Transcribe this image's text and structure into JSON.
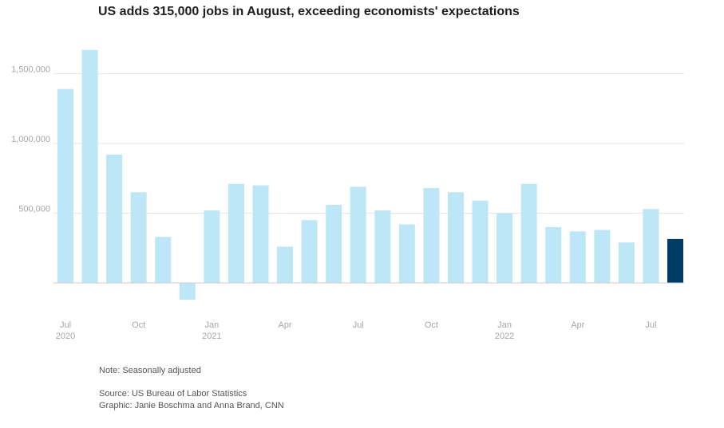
{
  "title": "US adds 315,000 jobs in August, exceeding economists' expectations",
  "note": "Note: Seasonally adjusted",
  "source": "Source: US Bureau of Labor Statistics",
  "credit": "Graphic: Janie Boschma and Anna Brand, CNN",
  "colors": {
    "bar": "#bde6f6",
    "highlight": "#003d66",
    "grid": "#e6e6e6",
    "axis": "#cccccc",
    "tick_text": "#a6a6a6"
  },
  "chart_data": {
    "type": "bar",
    "title": "US adds 315,000 jobs in August, exceeding economists' expectations",
    "xlabel": "",
    "ylabel": "",
    "ylim": [
      -130000,
      1750000
    ],
    "yticks": [
      {
        "value": 500000,
        "label": "500,000"
      },
      {
        "value": 1000000,
        "label": "1,000,000"
      },
      {
        "value": 1500000,
        "label": "1,500,000"
      }
    ],
    "categories": [
      "Jul 2020",
      "Aug 2020",
      "Sep 2020",
      "Oct 2020",
      "Nov 2020",
      "Dec 2020",
      "Jan 2021",
      "Feb 2021",
      "Mar 2021",
      "Apr 2021",
      "May 2021",
      "Jun 2021",
      "Jul 2021",
      "Aug 2021",
      "Sep 2021",
      "Oct 2021",
      "Nov 2021",
      "Dec 2021",
      "Jan 2022",
      "Feb 2022",
      "Mar 2022",
      "Apr 2022",
      "May 2022",
      "Jun 2022",
      "Jul 2022",
      "Aug 2022"
    ],
    "values": [
      1390000,
      1670000,
      920000,
      650000,
      330000,
      -120000,
      520000,
      710000,
      700000,
      260000,
      450000,
      560000,
      690000,
      520000,
      420000,
      680000,
      650000,
      590000,
      500000,
      710000,
      400000,
      370000,
      380000,
      290000,
      530000,
      315000
    ],
    "highlight_index": 25,
    "xtick_labels": [
      {
        "index": 0,
        "line1": "Jul",
        "line2": "2020"
      },
      {
        "index": 3,
        "line1": "Oct",
        "line2": ""
      },
      {
        "index": 6,
        "line1": "Jan",
        "line2": "2021"
      },
      {
        "index": 9,
        "line1": "Apr",
        "line2": ""
      },
      {
        "index": 12,
        "line1": "Jul",
        "line2": ""
      },
      {
        "index": 15,
        "line1": "Oct",
        "line2": ""
      },
      {
        "index": 18,
        "line1": "Jan",
        "line2": "2022"
      },
      {
        "index": 21,
        "line1": "Apr",
        "line2": ""
      },
      {
        "index": 24,
        "line1": "Jul",
        "line2": ""
      }
    ]
  }
}
